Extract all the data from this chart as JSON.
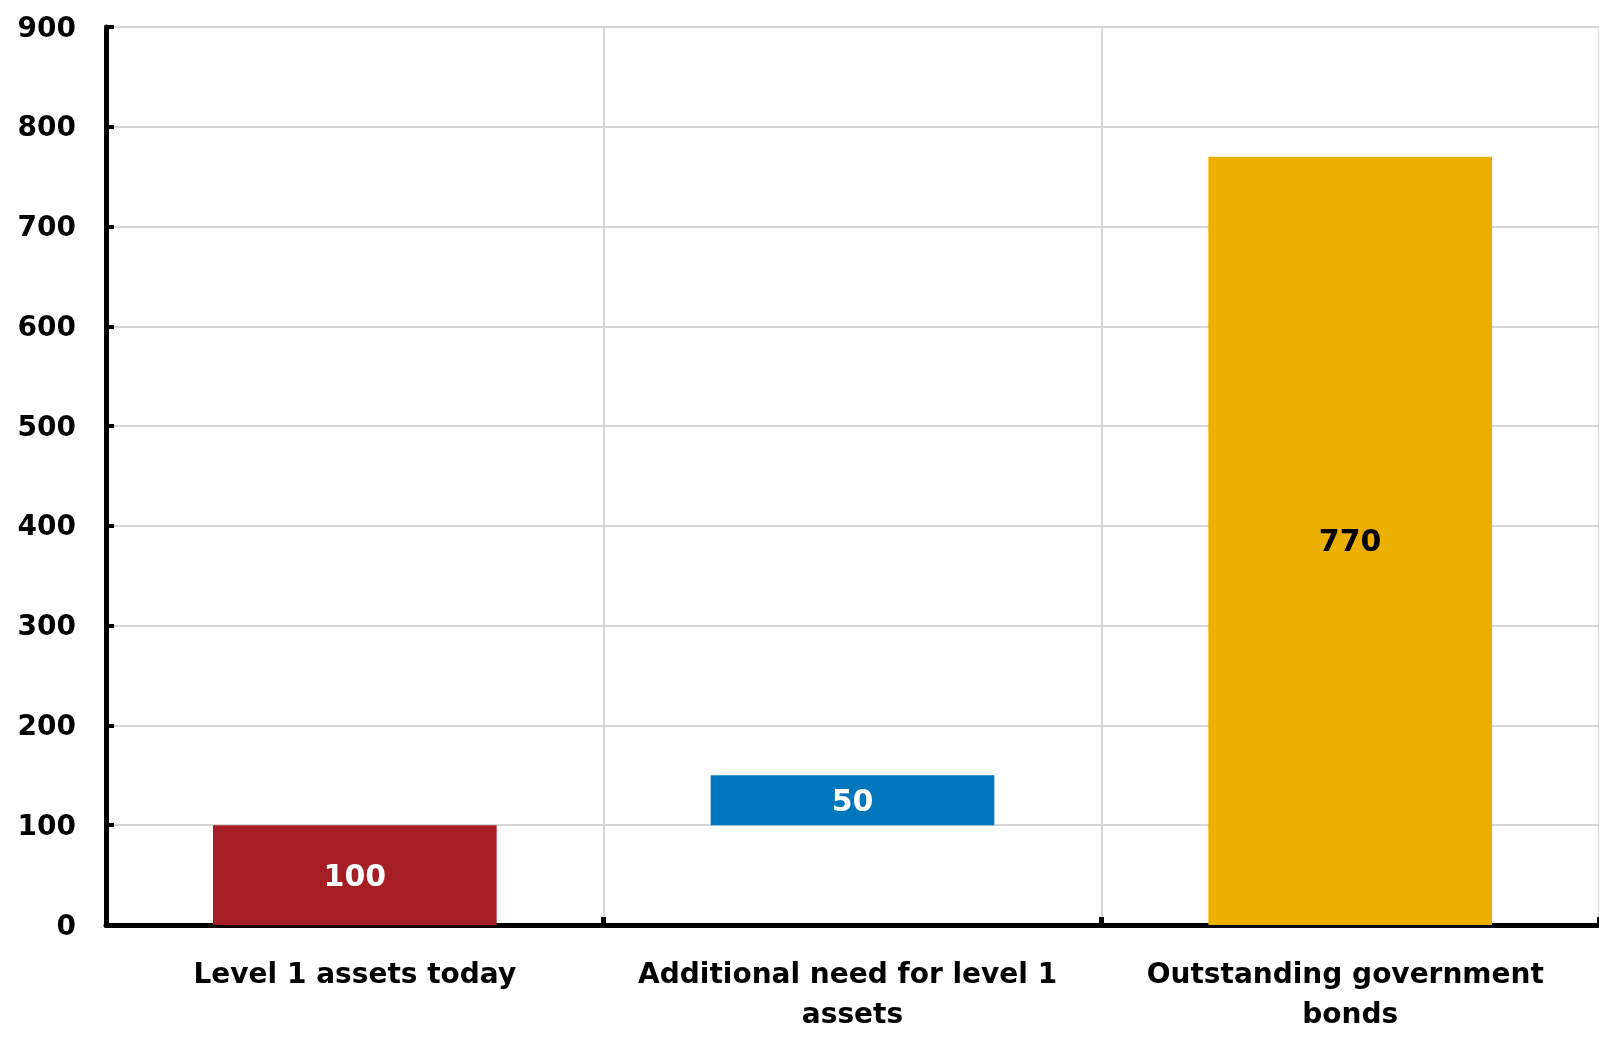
{
  "chart_data": {
    "type": "bar",
    "categories": [
      "Level 1 assets today",
      "Additional need for level 1 assets",
      "Outstanding government bonds"
    ],
    "values": [
      100,
      50,
      770
    ],
    "base": [
      0,
      100,
      0
    ],
    "colors": [
      "#a51e25",
      "#0077bd",
      "#edb000"
    ],
    "ylim": [
      0,
      900
    ],
    "yticks": [
      0,
      100,
      200,
      300,
      400,
      500,
      600,
      700,
      800,
      900
    ],
    "grid": true,
    "data_labels": true
  }
}
